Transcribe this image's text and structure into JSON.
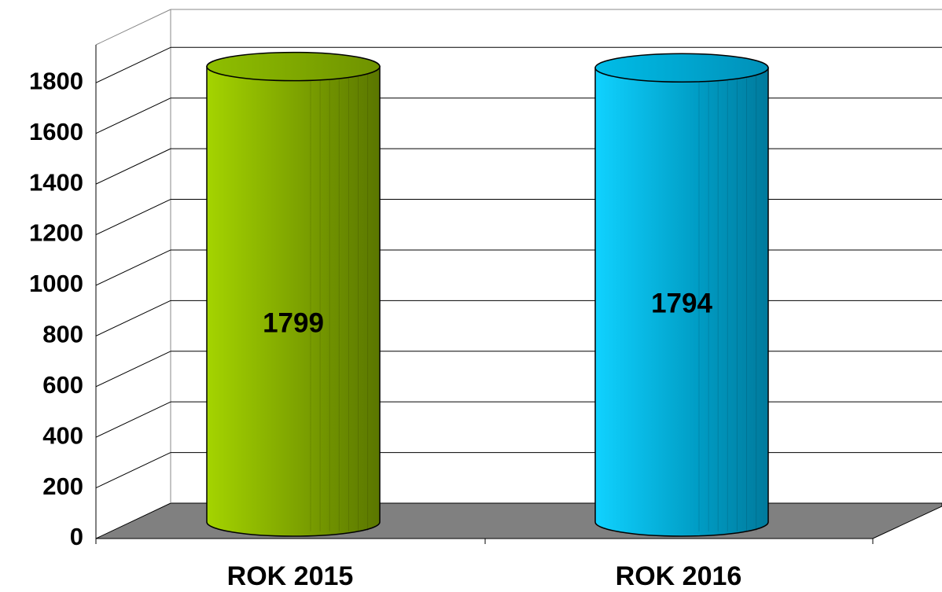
{
  "chart_data": {
    "type": "bar3d",
    "categories": [
      "ROK 2015",
      "ROK 2016"
    ],
    "series": [
      {
        "values": [
          1799,
          1794
        ]
      }
    ],
    "colors": [
      "#8fbf00",
      "#00bde8"
    ],
    "ylim": [
      0,
      1950
    ],
    "yticks": [
      0,
      200,
      400,
      600,
      800,
      1000,
      1200,
      1400,
      1600,
      1800
    ],
    "grid": true
  }
}
